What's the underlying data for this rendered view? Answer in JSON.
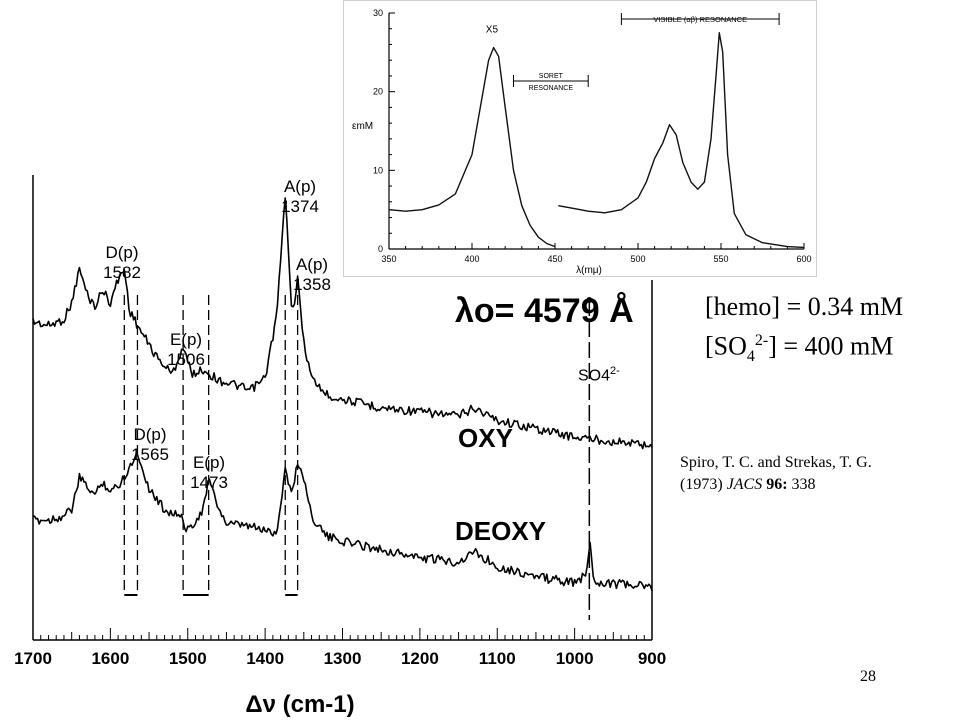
{
  "chart_data": [
    {
      "type": "line",
      "title": "",
      "xlabel": "Δν (cm-1)",
      "ylabel": "",
      "xlim": [
        1700,
        900
      ],
      "x_ticks": [
        1700,
        1600,
        1500,
        1400,
        1300,
        1200,
        1100,
        1000,
        900
      ],
      "excitation_label": "λo = 4579 Å",
      "series": [
        {
          "name": "OXY",
          "x": [
            1700,
            1680,
            1660,
            1650,
            1640,
            1630,
            1620,
            1610,
            1600,
            1590,
            1582,
            1575,
            1560,
            1540,
            1520,
            1506,
            1495,
            1480,
            1460,
            1440,
            1420,
            1400,
            1385,
            1374,
            1365,
            1358,
            1350,
            1340,
            1320,
            1300,
            1250,
            1200,
            1150,
            1130,
            1100,
            1050,
            1000,
            950,
            900
          ],
          "y": [
            0.35,
            0.33,
            0.36,
            0.44,
            0.6,
            0.48,
            0.42,
            0.5,
            0.44,
            0.55,
            0.6,
            0.4,
            0.3,
            0.18,
            0.1,
            0.23,
            0.1,
            0.12,
            0.07,
            0.05,
            0.02,
            0.08,
            0.38,
            0.95,
            0.38,
            0.55,
            0.25,
            0.08,
            0.0,
            -0.02,
            -0.06,
            -0.08,
            -0.1,
            -0.06,
            -0.12,
            -0.16,
            -0.2,
            -0.22,
            -0.24
          ]
        },
        {
          "name": "DEOXY",
          "x": [
            1700,
            1680,
            1660,
            1650,
            1640,
            1630,
            1620,
            1610,
            1600,
            1590,
            1580,
            1565,
            1550,
            1530,
            1510,
            1500,
            1490,
            1480,
            1473,
            1465,
            1450,
            1420,
            1400,
            1385,
            1374,
            1365,
            1358,
            1350,
            1340,
            1320,
            1300,
            1250,
            1200,
            1150,
            1130,
            1100,
            1050,
            1000,
            985,
            980,
            975,
            960,
            930,
            900
          ],
          "y": [
            0.0,
            0.0,
            0.02,
            0.05,
            0.2,
            0.16,
            0.12,
            0.18,
            0.14,
            0.16,
            0.22,
            0.32,
            0.15,
            0.05,
            0.02,
            -0.05,
            0.0,
            0.05,
            0.2,
            0.1,
            -0.02,
            -0.03,
            -0.05,
            -0.06,
            0.24,
            0.12,
            0.28,
            0.2,
            0.02,
            -0.08,
            -0.1,
            -0.14,
            -0.18,
            -0.2,
            -0.15,
            -0.22,
            -0.27,
            -0.3,
            -0.26,
            -0.1,
            -0.29,
            -0.3,
            -0.31,
            -0.32
          ]
        }
      ],
      "peak_labels": [
        {
          "letter": "D(p)",
          "wavenumber": "1582",
          "x": 1582,
          "series": "OXY"
        },
        {
          "letter": "E(p)",
          "wavenumber": "1506",
          "x": 1506,
          "series": "OXY"
        },
        {
          "letter": "A(p)",
          "wavenumber": "1374",
          "x": 1374,
          "series": "OXY"
        },
        {
          "letter": "A(p)",
          "wavenumber": "1358",
          "x": 1358,
          "series": "OXY"
        },
        {
          "letter": "D(p)",
          "wavenumber": "1565",
          "x": 1565,
          "series": "DEOXY"
        },
        {
          "letter": "E(p)",
          "wavenumber": "1473",
          "x": 1473,
          "series": "DEOXY"
        }
      ],
      "shift_pairs": [
        [
          1582,
          1565
        ],
        [
          1506,
          1473
        ],
        [
          1374,
          1358
        ]
      ],
      "reference_band": {
        "label": "SO4 2-",
        "x": 981
      }
    },
    {
      "type": "line",
      "xlabel": "λ(mμ)",
      "ylabel": "εmM",
      "xlim": [
        350,
        600
      ],
      "ylim": [
        0,
        30
      ],
      "x_ticks": [
        350,
        400,
        450,
        500,
        550,
        600
      ],
      "y_ticks": [
        0,
        10,
        20,
        30
      ],
      "scale_note": "X5",
      "regions": [
        {
          "label_line1": "SORET",
          "label_line2": "RESONANCE",
          "range": [
            425,
            470
          ]
        },
        {
          "label": "VISIBLE (αβ) RESONANCE",
          "range": [
            490,
            585
          ]
        }
      ],
      "series": [
        {
          "name": "",
          "segment_1": {
            "x": [
              350,
              360,
              370,
              380,
              390,
              400,
              405,
              410,
              413,
              416,
              420,
              425,
              430,
              435,
              440,
              445,
              450
            ],
            "y": [
              5.0,
              4.8,
              5.0,
              5.6,
              7.0,
              12.0,
              18.0,
              24.0,
              25.6,
              24.5,
              18.0,
              10.0,
              5.5,
              3.0,
              1.5,
              0.7,
              0.3
            ]
          },
          "segment_2": {
            "x": [
              452,
              460,
              470,
              480,
              490,
              500,
              505,
              510,
              515,
              519,
              523,
              527,
              532,
              536,
              540,
              544,
              547,
              549,
              551,
              554,
              558,
              565,
              575,
              590,
              600
            ],
            "y": [
              5.5,
              5.2,
              4.8,
              4.6,
              5.0,
              6.5,
              8.5,
              11.5,
              13.5,
              15.8,
              14.5,
              11.0,
              8.5,
              7.6,
              8.5,
              14.0,
              22.0,
              27.5,
              25.0,
              12.0,
              4.5,
              1.8,
              0.8,
              0.3,
              0.2
            ]
          }
        }
      ]
    }
  ],
  "annotations": {
    "so4_label": "SO4",
    "so4_charge": "2-",
    "trace_labels": {
      "oxy": "OXY",
      "deoxy": "DEOXY"
    },
    "excitation": "λo= 4579 Å"
  },
  "conditions": {
    "line1": "[hemo] = 0.34 mM",
    "line2_prefix": "[SO",
    "line2_sub": "4",
    "line2_sup": "2-",
    "line2_suffix": "] = 400 mM"
  },
  "citation": {
    "line1": "Spiro, T. C. and Strekas, T. G.",
    "line2_year": "(1973) ",
    "line2_journal": "JACS",
    "line2_volume": " 96:",
    "line2_pages": " 338"
  },
  "page_number": "28"
}
